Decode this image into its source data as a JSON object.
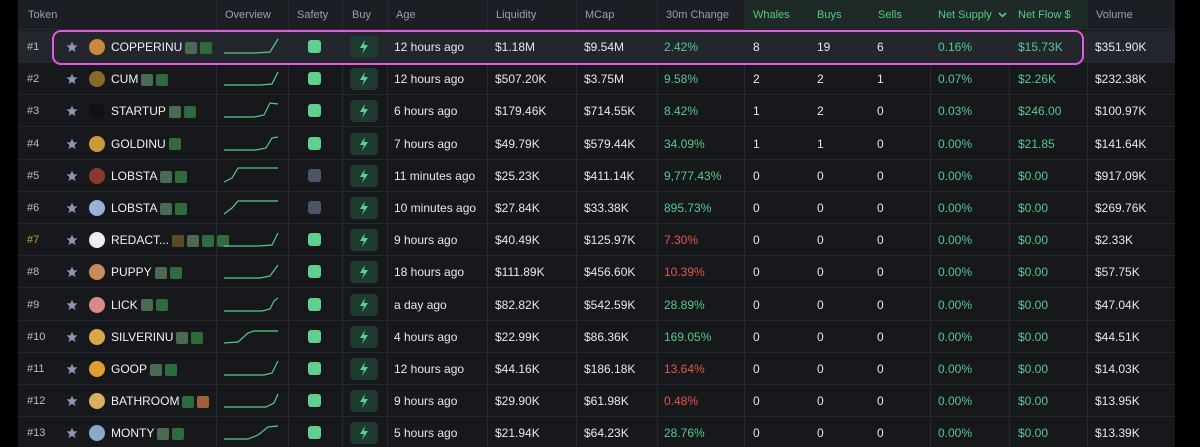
{
  "headers": {
    "token": "Token",
    "overview": "Overview",
    "safety": "Safety",
    "buy": "Buy",
    "age": "Age",
    "liquidity": "Liquidity",
    "mcap": "MCap",
    "change": "30m Change",
    "whales": "Whales",
    "buys": "Buys",
    "sells": "Sells",
    "net_supply": "Net Supply",
    "net_flow": "Net Flow $",
    "volume": "Volume"
  },
  "rows": [
    {
      "rank": "#1",
      "name": "COPPERINU",
      "age": "12 hours ago",
      "liquidity": "$1.18M",
      "mcap": "$9.54M",
      "change": "2.42%",
      "change_dir": "up",
      "whales": "8",
      "buys": "19",
      "sells": "6",
      "net_supply": "0.16%",
      "net_flow": "$15.73K",
      "volume": "$351.90K",
      "safety": "green",
      "avatar_color": "#c98a3a"
    },
    {
      "rank": "#2",
      "name": "CUM",
      "age": "12 hours ago",
      "liquidity": "$507.20K",
      "mcap": "$3.75M",
      "change": "9.58%",
      "change_dir": "up",
      "whales": "2",
      "buys": "2",
      "sells": "1",
      "net_supply": "0.07%",
      "net_flow": "$2.26K",
      "volume": "$232.38K",
      "safety": "green",
      "avatar_color": "#8a6a2a"
    },
    {
      "rank": "#3",
      "name": "STARTUP",
      "age": "6 hours ago",
      "liquidity": "$179.46K",
      "mcap": "$714.55K",
      "change": "8.42%",
      "change_dir": "up",
      "whales": "1",
      "buys": "2",
      "sells": "0",
      "net_supply": "0.03%",
      "net_flow": "$246.00",
      "volume": "$100.97K",
      "safety": "green",
      "avatar_color": "#111111"
    },
    {
      "rank": "#4",
      "name": "GOLDINU",
      "age": "7 hours ago",
      "liquidity": "$49.79K",
      "mcap": "$579.44K",
      "change": "34.09%",
      "change_dir": "up",
      "whales": "1",
      "buys": "1",
      "sells": "0",
      "net_supply": "0.00%",
      "net_flow": "$21.85",
      "volume": "$141.64K",
      "safety": "green",
      "avatar_color": "#c99a3a"
    },
    {
      "rank": "#5",
      "name": "LOBSTA",
      "age": "11 minutes ago",
      "liquidity": "$25.23K",
      "mcap": "$411.14K",
      "change": "9,777.43%",
      "change_dir": "up",
      "whales": "0",
      "buys": "0",
      "sells": "0",
      "net_supply": "0.00%",
      "net_flow": "$0.00",
      "volume": "$917.09K",
      "safety": "grey",
      "avatar_color": "#8a3a2a"
    },
    {
      "rank": "#6",
      "name": "LOBSTA",
      "age": "10 minutes ago",
      "liquidity": "$27.84K",
      "mcap": "$33.38K",
      "change": "895.73%",
      "change_dir": "up",
      "whales": "0",
      "buys": "0",
      "sells": "0",
      "net_supply": "0.00%",
      "net_flow": "$0.00",
      "volume": "$269.76K",
      "safety": "grey",
      "avatar_color": "#9ab0d8"
    },
    {
      "rank": "#7",
      "name": "REDACT...",
      "age": "9 hours ago",
      "liquidity": "$40.49K",
      "mcap": "$125.97K",
      "change": "7.30%",
      "change_dir": "down",
      "whales": "0",
      "buys": "0",
      "sells": "0",
      "net_supply": "0.00%",
      "net_flow": "$0.00",
      "volume": "$2.33K",
      "safety": "green",
      "avatar_color": "#eeeeee"
    },
    {
      "rank": "#8",
      "name": "PUPPY",
      "age": "18 hours ago",
      "liquidity": "$111.89K",
      "mcap": "$456.60K",
      "change": "10.39%",
      "change_dir": "down",
      "whales": "0",
      "buys": "0",
      "sells": "0",
      "net_supply": "0.00%",
      "net_flow": "$0.00",
      "volume": "$57.75K",
      "safety": "green",
      "avatar_color": "#c98a5a"
    },
    {
      "rank": "#9",
      "name": "LICK",
      "age": "a day ago",
      "liquidity": "$82.82K",
      "mcap": "$542.59K",
      "change": "28.89%",
      "change_dir": "up",
      "whales": "0",
      "buys": "0",
      "sells": "0",
      "net_supply": "0.00%",
      "net_flow": "$0.00",
      "volume": "$47.04K",
      "safety": "green",
      "avatar_color": "#d88a8a"
    },
    {
      "rank": "#10",
      "name": "SILVERINU",
      "age": "4 hours ago",
      "liquidity": "$22.99K",
      "mcap": "$86.36K",
      "change": "169.05%",
      "change_dir": "up",
      "whales": "0",
      "buys": "0",
      "sells": "0",
      "net_supply": "0.00%",
      "net_flow": "$0.00",
      "volume": "$44.51K",
      "safety": "green",
      "avatar_color": "#d8a84a"
    },
    {
      "rank": "#11",
      "name": "GOOP",
      "age": "12 hours ago",
      "liquidity": "$44.16K",
      "mcap": "$186.18K",
      "change": "13.64%",
      "change_dir": "down",
      "whales": "0",
      "buys": "0",
      "sells": "0",
      "net_supply": "0.00%",
      "net_flow": "$0.00",
      "volume": "$14.03K",
      "safety": "green",
      "avatar_color": "#e0a030"
    },
    {
      "rank": "#12",
      "name": "BATHROOM",
      "age": "9 hours ago",
      "liquidity": "$29.90K",
      "mcap": "$61.98K",
      "change": "0.48%",
      "change_dir": "down",
      "whales": "0",
      "buys": "0",
      "sells": "0",
      "net_supply": "0.00%",
      "net_flow": "$0.00",
      "volume": "$13.95K",
      "safety": "green",
      "avatar_color": "#d8b060"
    },
    {
      "rank": "#13",
      "name": "MONTY",
      "age": "5 hours ago",
      "liquidity": "$21.94K",
      "mcap": "$64.23K",
      "change": "28.76%",
      "change_dir": "up",
      "whales": "0",
      "buys": "0",
      "sells": "0",
      "net_supply": "0.00%",
      "net_flow": "$0.00",
      "volume": "$13.39K",
      "safety": "green",
      "avatar_color": "#8aa8c8"
    }
  ],
  "colors": {
    "accent_green": "#56c98a",
    "negative_red": "#e0594a",
    "highlight": "#e35be3"
  }
}
